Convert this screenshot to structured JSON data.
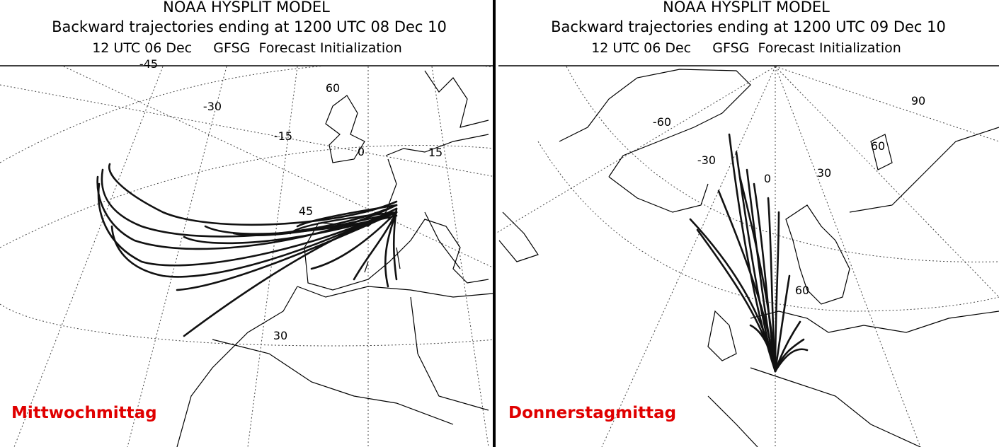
{
  "panels": [
    {
      "title": "NOAA HYSPLIT MODEL",
      "subtitle": "Backward trajectories ending at 1200 UTC 08 Dec 10",
      "initialization": "12 UTC 06 Dec     GFSG  Forecast Initialization",
      "grid_labels": [
        "-45",
        "-30",
        "-15",
        "0",
        "15",
        "60",
        "45",
        "30"
      ],
      "caption": "Mittwochmittag"
    },
    {
      "title": "NOAA HYSPLIT MODEL",
      "subtitle": "Backward trajectories ending at 1200 UTC 09 Dec 10",
      "initialization": "12 UTC 06 Dec     GFSG  Forecast Initialization",
      "grid_labels": [
        "-60",
        "-30",
        "0",
        "30",
        "60",
        "90",
        "60"
      ],
      "caption": "Donnerstagmittag"
    }
  ]
}
